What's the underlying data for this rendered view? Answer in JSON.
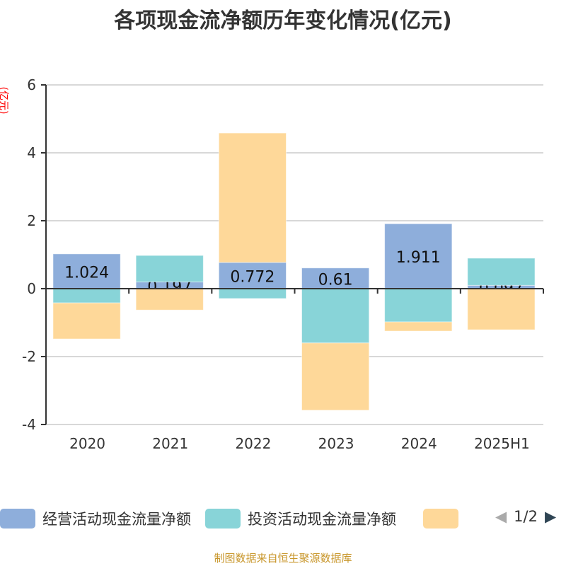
{
  "chart_data": {
    "type": "bar",
    "stacked": true,
    "title": "各项现金流净额历年变化情况(亿元)",
    "ylabel": "(亿元)",
    "categories": [
      "2020",
      "2021",
      "2022",
      "2023",
      "2024",
      "2025H1"
    ],
    "ylim": [
      -4,
      6
    ],
    "yticks": [
      "-4",
      "-2",
      "0",
      "2",
      "4",
      "6"
    ],
    "grid": true,
    "legend_position": "bottom",
    "series": [
      {
        "name": "经营活动现金流量净额",
        "color": "#8eaedb",
        "values": [
          1.024,
          0.197,
          0.772,
          0.61,
          1.911,
          0.097
        ],
        "labels": [
          "1.024",
          "0.197",
          "0.772",
          "0.61",
          "1.911",
          "0.097"
        ]
      },
      {
        "name": "投资活动现金流量净额",
        "color": "#88d4d8",
        "values": [
          -0.42,
          0.78,
          -0.29,
          -1.6,
          -0.98,
          0.8
        ]
      },
      {
        "name": "",
        "color": "#fed899",
        "values": [
          -1.06,
          -0.63,
          3.81,
          -1.98,
          -0.27,
          -1.21
        ]
      }
    ]
  },
  "pager": "1/2",
  "source": "制图数据来自恒生聚源数据库"
}
